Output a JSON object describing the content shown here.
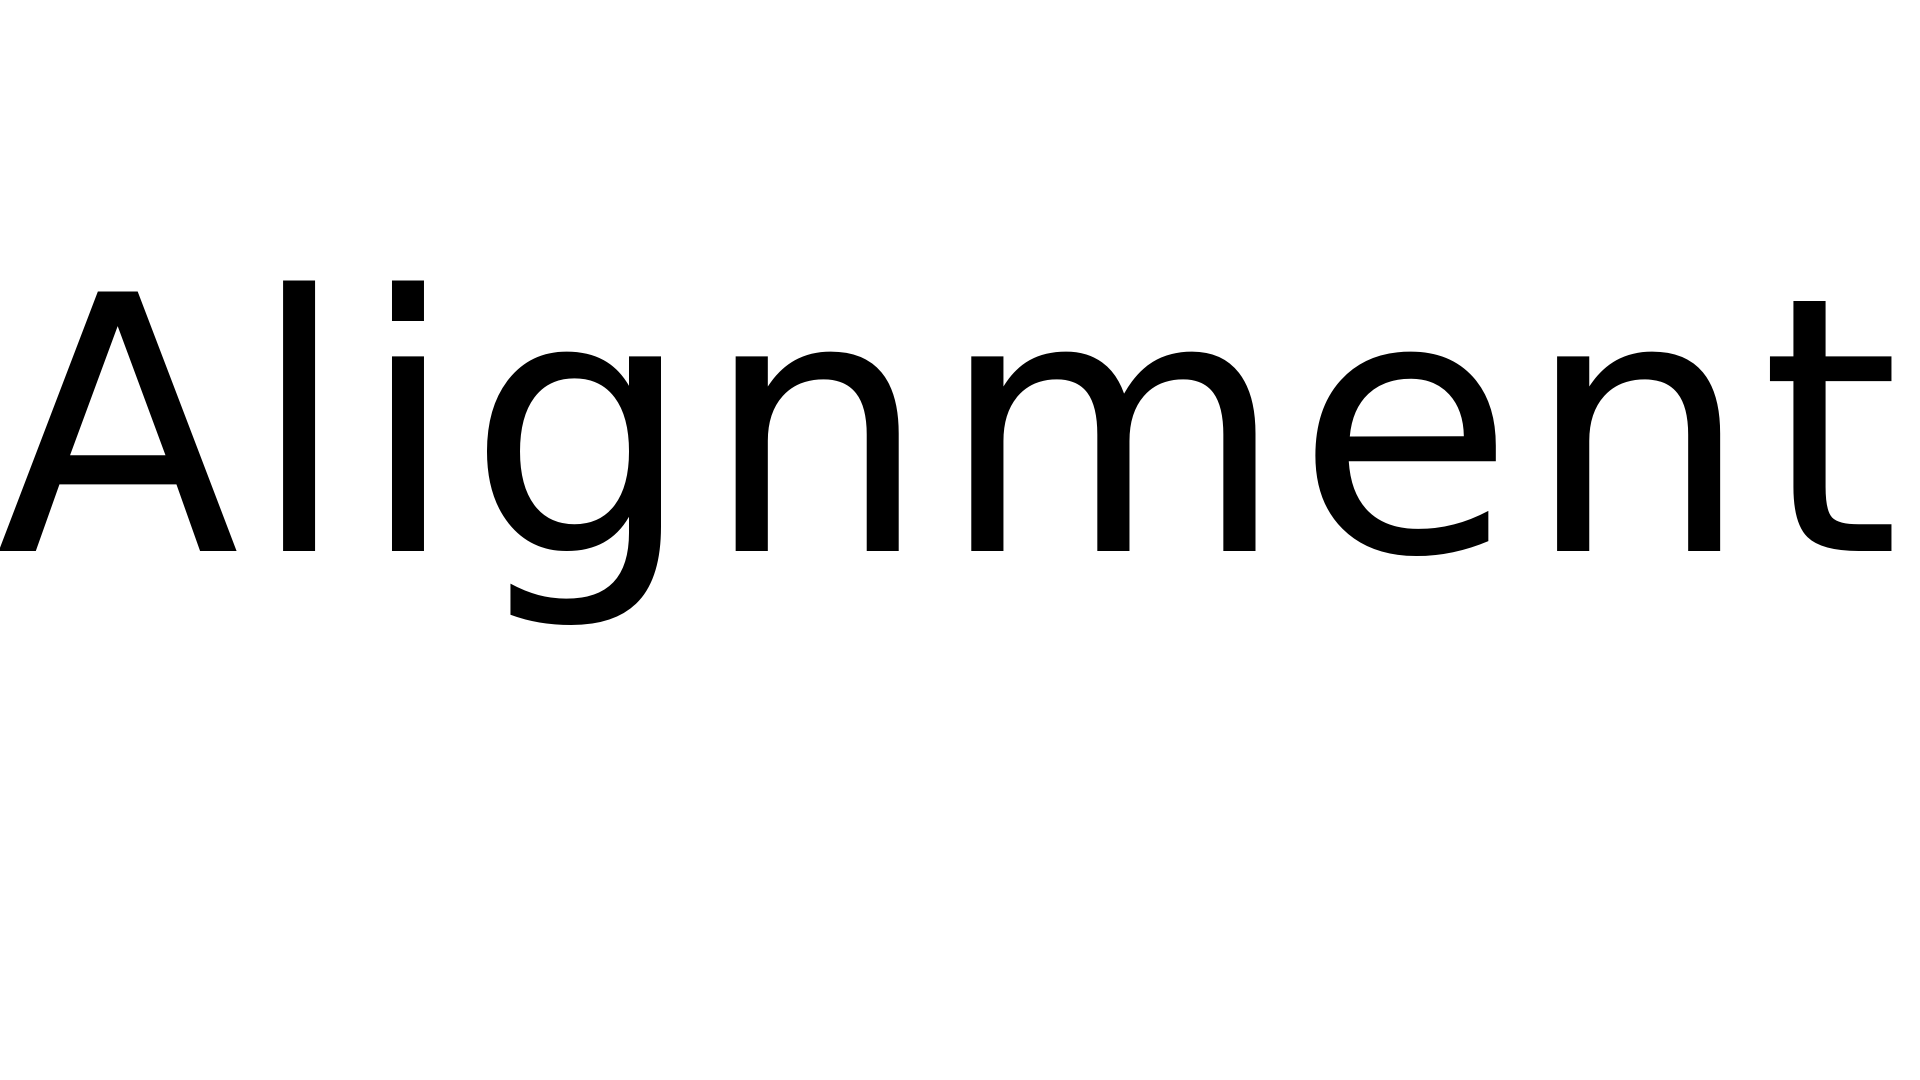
{
  "title": {
    "text": "Alignment",
    "color": "#000000"
  },
  "background_color": "#ffffff"
}
